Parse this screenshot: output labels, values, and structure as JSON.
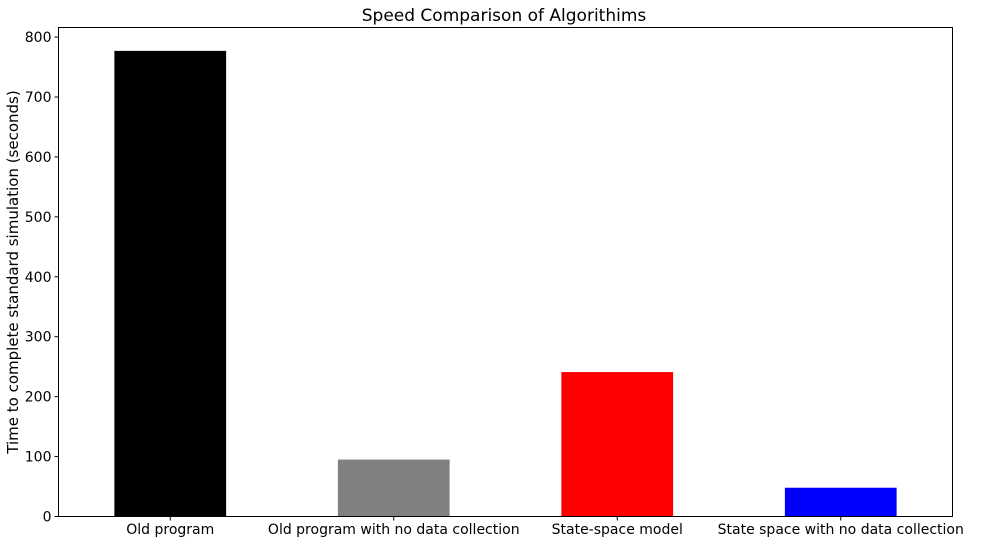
{
  "chart_data": {
    "type": "bar",
    "title": "Speed Comparison of Algorithims",
    "xlabel": "",
    "ylabel": "Time to complete standard simulation (seconds)",
    "categories": [
      "Old program",
      "Old program with no data collection",
      "State-space model",
      "State space with no data collection"
    ],
    "values": [
      777,
      95,
      241,
      48
    ],
    "colors": [
      "#000000",
      "#808080",
      "#ff0000",
      "#0000ff"
    ],
    "ylim": [
      0,
      816
    ],
    "yticks": [
      0,
      100,
      200,
      300,
      400,
      500,
      600,
      700,
      800
    ],
    "grid": false,
    "legend": false
  }
}
